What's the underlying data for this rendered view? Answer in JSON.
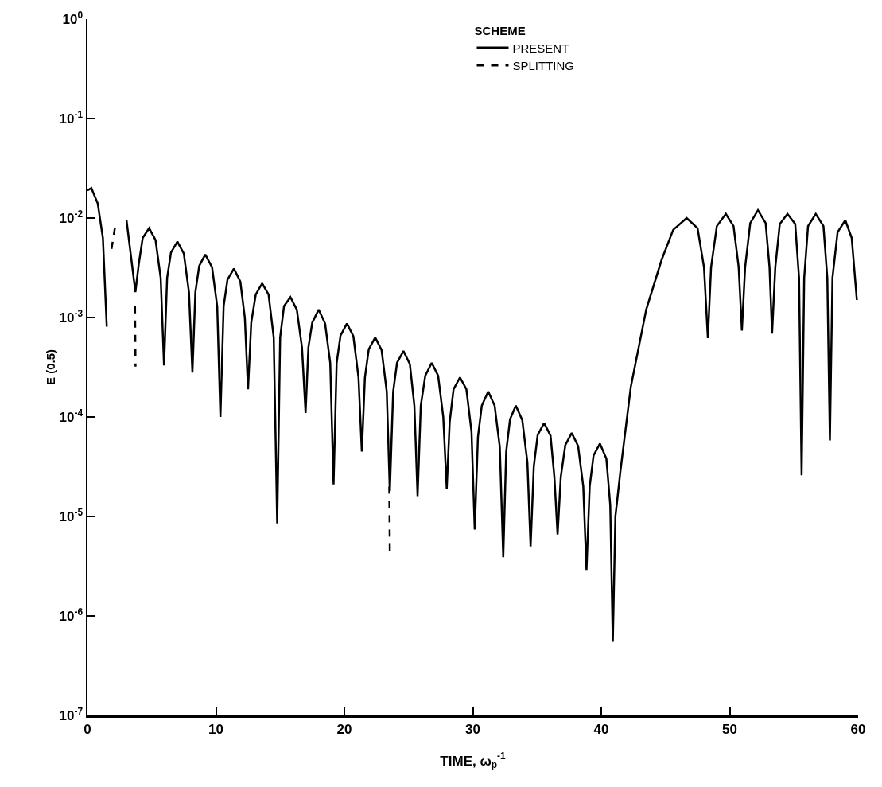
{
  "chart_data": {
    "type": "line",
    "xlabel": "TIME, ω$_{p}$$^{-1}$",
    "ylabel": "E (0.5)",
    "legend_title": "SCHEME",
    "legend": "top",
    "log": "y",
    "grid": false,
    "marker": "none",
    "xlim": [
      0,
      60
    ],
    "xticks": [
      0,
      10,
      20,
      30,
      40,
      50,
      60
    ],
    "ylim": [
      1e-07,
      1
    ],
    "yticks": [
      {
        "value": 1,
        "label": "10$^{0}$"
      },
      {
        "value": 0.1,
        "label": "10$^{-1}$"
      },
      {
        "value": 0.01,
        "label": "10$^{-2}$"
      },
      {
        "value": 0.001,
        "label": "10$^{-3}$"
      },
      {
        "value": 0.0001,
        "label": "10$^{-4}$"
      },
      {
        "value": 1e-05,
        "label": "10$^{-5}$"
      },
      {
        "value": 1e-06,
        "label": "10$^{-6}$"
      },
      {
        "value": 1e-07,
        "label": "10$^{-7}$"
      }
    ],
    "series": [
      {
        "name": "PRESENT",
        "color": "#000000",
        "line_style": "solid",
        "x": [
          0,
          0.3,
          0.8,
          1.2,
          1.5,
          2.2,
          3.04,
          3.4,
          3.73,
          4.0,
          4.3,
          4.8,
          5.3,
          5.7,
          5.96,
          6.2,
          6.5,
          7.0,
          7.5,
          7.9,
          8.17,
          8.4,
          8.7,
          9.17,
          9.7,
          10.1,
          10.35,
          10.6,
          10.9,
          11.4,
          11.9,
          12.25,
          12.5,
          12.75,
          13.1,
          13.6,
          14.1,
          14.5,
          14.77,
          15.0,
          15.3,
          15.8,
          16.3,
          16.7,
          16.98,
          17.2,
          17.5,
          18.0,
          18.5,
          18.9,
          19.16,
          19.4,
          19.7,
          20.2,
          20.7,
          21.1,
          21.36,
          21.6,
          21.9,
          22.4,
          22.9,
          23.3,
          23.54,
          23.8,
          24.1,
          24.6,
          25.1,
          25.45,
          25.7,
          25.95,
          26.3,
          26.8,
          27.3,
          27.7,
          27.97,
          28.2,
          28.5,
          29.0,
          29.5,
          29.9,
          30.15,
          30.4,
          30.7,
          31.2,
          31.7,
          32.1,
          32.37,
          32.6,
          32.9,
          33.35,
          33.85,
          34.25,
          34.5,
          34.75,
          35.05,
          35.55,
          36.05,
          36.35,
          36.6,
          36.85,
          37.2,
          37.7,
          38.2,
          38.6,
          38.85,
          39.1,
          39.4,
          39.9,
          40.4,
          40.7,
          40.9,
          41.1,
          41.5,
          42.3,
          43.5,
          44.7,
          45.6,
          46.65,
          47.5,
          48.0,
          48.3,
          48.55,
          49.0,
          49.7,
          50.3,
          50.7,
          50.95,
          51.2,
          51.6,
          52.2,
          52.8,
          53.1,
          53.3,
          53.55,
          53.9,
          54.5,
          55.1,
          55.4,
          55.6,
          55.8,
          56.1,
          56.7,
          57.3,
          57.6,
          57.8,
          58.0,
          58.4,
          59.0,
          59.5,
          59.9
        ],
        "values": [
          0.019,
          0.02,
          0.014,
          0.0063,
          0.00081,
          null,
          0.0095,
          0.004,
          0.0018,
          0.0035,
          0.0063,
          0.0079,
          0.006,
          0.0025,
          0.00033,
          0.0025,
          0.0045,
          0.0058,
          0.0044,
          0.0018,
          0.00028,
          0.0018,
          0.0033,
          0.0043,
          0.0032,
          0.0013,
          0.0001,
          0.0013,
          0.0024,
          0.0031,
          0.0023,
          0.001,
          0.00019,
          0.00089,
          0.0017,
          0.0022,
          0.0017,
          0.00063,
          8.5e-06,
          0.00063,
          0.0013,
          0.0016,
          0.0012,
          0.0005,
          0.00011,
          0.0005,
          0.00089,
          0.0012,
          0.00087,
          0.00035,
          2.1e-05,
          0.00035,
          0.00066,
          0.00087,
          0.00065,
          0.00025,
          4.5e-05,
          0.00025,
          0.00048,
          0.00063,
          0.00047,
          0.00018,
          1.8e-05,
          0.00018,
          0.00035,
          0.00046,
          0.00034,
          0.00013,
          1.6e-05,
          0.00013,
          0.00026,
          0.00035,
          0.00026,
          0.0001,
          1.9e-05,
          8.9e-05,
          0.00019,
          0.00025,
          0.00019,
          7.1e-05,
          7.4e-06,
          6.3e-05,
          0.00013,
          0.00018,
          0.00013,
          5e-05,
          3.9e-06,
          4.5e-05,
          9.5e-05,
          0.00013,
          9.3e-05,
          3.5e-05,
          5e-06,
          3.2e-05,
          6.6e-05,
          8.7e-05,
          6.5e-05,
          2.5e-05,
          6.6e-06,
          2.5e-05,
          5.2e-05,
          6.9e-05,
          5.1e-05,
          2e-05,
          2.9e-06,
          2e-05,
          4.1e-05,
          5.4e-05,
          3.8e-05,
          1.3e-05,
          5.5e-07,
          1e-05,
          2.9e-05,
          0.0002,
          0.0012,
          0.0038,
          0.0076,
          0.01,
          0.0079,
          0.0032,
          0.00062,
          0.0032,
          0.0083,
          0.011,
          0.0083,
          0.0032,
          0.00074,
          0.0032,
          0.0089,
          0.012,
          0.0089,
          0.0032,
          0.00069,
          0.0032,
          0.0087,
          0.011,
          0.0087,
          0.0025,
          2.6e-05,
          0.0025,
          0.0083,
          0.011,
          0.0083,
          0.0025,
          5.8e-05,
          0.0025,
          0.0072,
          0.0095,
          0.0063,
          0.0015
        ]
      },
      {
        "name": "SPLITTING",
        "color": "#000000",
        "line_style": "dashed",
        "x": [
          1.87,
          2.22,
          3.0,
          3.7,
          3.74,
          20.0,
          23.5,
          23.54
        ],
        "values": [
          0.0049,
          0.0093,
          null,
          0.0013,
          0.00032,
          null,
          2e-05,
          4.2e-06
        ]
      }
    ]
  }
}
